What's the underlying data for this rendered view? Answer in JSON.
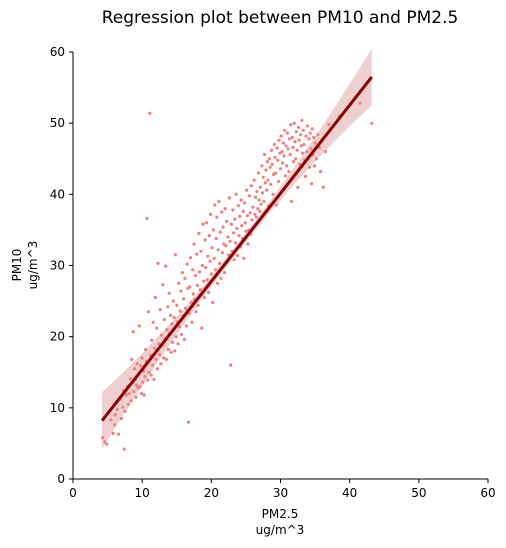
{
  "chart_data": {
    "type": "scatter",
    "title": "Regression plot between PM10 and PM2.5",
    "xlabel": [
      "PM2.5",
      "ug/m^3"
    ],
    "ylabel": [
      "PM10",
      "ug/m^3"
    ],
    "xlim": [
      0,
      60
    ],
    "ylim": [
      0,
      60
    ],
    "xticks": [
      0,
      10,
      20,
      30,
      40,
      50,
      60
    ],
    "yticks": [
      0,
      10,
      20,
      30,
      40,
      50,
      60
    ],
    "grid": false,
    "colors": {
      "points": "#f08080",
      "regression_line": "#8b0000",
      "confidence_band": "#e8bcbc"
    },
    "regression_line": {
      "x": [
        4.2,
        43.2
      ],
      "y": [
        8.2,
        56.5
      ]
    },
    "points": [
      [
        4.3,
        5.8
      ],
      [
        4.6,
        5.2
      ],
      [
        4.9,
        4.9
      ],
      [
        5.5,
        8.3
      ],
      [
        5.8,
        6.4
      ],
      [
        6.0,
        7.6
      ],
      [
        6.1,
        9.0
      ],
      [
        6.2,
        10.7
      ],
      [
        6.4,
        9.8
      ],
      [
        6.6,
        6.3
      ],
      [
        6.8,
        11.2
      ],
      [
        7.0,
        8.5
      ],
      [
        7.2,
        10.1
      ],
      [
        7.3,
        12.4
      ],
      [
        7.4,
        4.2
      ],
      [
        7.5,
        9.5
      ],
      [
        7.7,
        11.8
      ],
      [
        7.9,
        13.0
      ],
      [
        8.0,
        10.5
      ],
      [
        8.1,
        12.0
      ],
      [
        8.3,
        14.1
      ],
      [
        8.4,
        11.0
      ],
      [
        8.5,
        16.8
      ],
      [
        8.6,
        13.5
      ],
      [
        8.7,
        20.7
      ],
      [
        8.8,
        12.3
      ],
      [
        8.9,
        15.5
      ],
      [
        9.0,
        14.0
      ],
      [
        9.1,
        11.5
      ],
      [
        9.2,
        13.2
      ],
      [
        9.3,
        16.2
      ],
      [
        9.4,
        12.8
      ],
      [
        9.5,
        14.7
      ],
      [
        9.6,
        21.5
      ],
      [
        9.7,
        13.0
      ],
      [
        9.8,
        15.9
      ],
      [
        9.9,
        12.0
      ],
      [
        10.0,
        17.0
      ],
      [
        10.1,
        13.6
      ],
      [
        10.2,
        15.2
      ],
      [
        10.3,
        11.8
      ],
      [
        10.4,
        14.4
      ],
      [
        10.5,
        18.2
      ],
      [
        10.6,
        16.5
      ],
      [
        10.7,
        36.6
      ],
      [
        10.8,
        13.9
      ],
      [
        10.9,
        23.5
      ],
      [
        11.0,
        15.0
      ],
      [
        11.1,
        51.4
      ],
      [
        11.2,
        17.4
      ],
      [
        11.3,
        14.6
      ],
      [
        11.4,
        19.5
      ],
      [
        11.5,
        16.0
      ],
      [
        11.6,
        22.0
      ],
      [
        11.7,
        14.0
      ],
      [
        11.8,
        18.4
      ],
      [
        11.9,
        25.5
      ],
      [
        12.0,
        16.8
      ],
      [
        12.1,
        21.2
      ],
      [
        12.2,
        15.5
      ],
      [
        12.3,
        30.3
      ],
      [
        12.4,
        19.0
      ],
      [
        12.5,
        17.5
      ],
      [
        12.6,
        23.8
      ],
      [
        12.7,
        16.2
      ],
      [
        12.8,
        20.2
      ],
      [
        12.9,
        18.8
      ],
      [
        13.0,
        27.3
      ],
      [
        13.1,
        17.0
      ],
      [
        13.2,
        22.4
      ],
      [
        13.3,
        19.7
      ],
      [
        13.4,
        29.9
      ],
      [
        13.5,
        16.8
      ],
      [
        13.6,
        21.0
      ],
      [
        13.7,
        24.2
      ],
      [
        13.8,
        18.2
      ],
      [
        13.9,
        26.1
      ],
      [
        14.0,
        20.5
      ],
      [
        14.1,
        23.0
      ],
      [
        14.2,
        17.8
      ],
      [
        14.3,
        21.8
      ],
      [
        14.4,
        19.2
      ],
      [
        14.5,
        25.0
      ],
      [
        14.6,
        22.7
      ],
      [
        14.7,
        18.0
      ],
      [
        14.8,
        31.5
      ],
      [
        14.9,
        20.0
      ],
      [
        15.0,
        24.4
      ],
      [
        15.1,
        22.1
      ],
      [
        15.2,
        19.0
      ],
      [
        15.3,
        27.5
      ],
      [
        15.4,
        21.4
      ],
      [
        15.5,
        23.6
      ],
      [
        15.6,
        26.4
      ],
      [
        15.7,
        20.3
      ],
      [
        15.8,
        29.0
      ],
      [
        15.9,
        22.9
      ],
      [
        16.0,
        25.3
      ],
      [
        16.1,
        19.6
      ],
      [
        16.2,
        28.2
      ],
      [
        16.3,
        24.0
      ],
      [
        16.4,
        21.5
      ],
      [
        16.5,
        30.2
      ],
      [
        16.6,
        26.8
      ],
      [
        16.7,
        8.0
      ],
      [
        16.8,
        23.3
      ],
      [
        16.9,
        27.0
      ],
      [
        17.0,
        31.1
      ],
      [
        17.1,
        24.8
      ],
      [
        17.2,
        22.0
      ],
      [
        17.3,
        29.4
      ],
      [
        17.4,
        26.0
      ],
      [
        17.5,
        33.0
      ],
      [
        17.6,
        25.2
      ],
      [
        17.7,
        28.6
      ],
      [
        17.8,
        23.5
      ],
      [
        17.9,
        31.6
      ],
      [
        18.0,
        27.2
      ],
      [
        18.1,
        24.4
      ],
      [
        18.2,
        34.5
      ],
      [
        18.3,
        29.1
      ],
      [
        18.4,
        26.6
      ],
      [
        18.5,
        32.0
      ],
      [
        18.6,
        21.2
      ],
      [
        18.7,
        30.0
      ],
      [
        18.8,
        35.8
      ],
      [
        18.9,
        27.8
      ],
      [
        19.0,
        25.5
      ],
      [
        19.1,
        33.6
      ],
      [
        19.2,
        29.7
      ],
      [
        19.3,
        36.0
      ],
      [
        19.4,
        28.0
      ],
      [
        19.5,
        31.3
      ],
      [
        19.6,
        26.2
      ],
      [
        19.7,
        34.2
      ],
      [
        19.8,
        30.6
      ],
      [
        19.9,
        37.2
      ],
      [
        20.0,
        28.8
      ],
      [
        20.1,
        32.5
      ],
      [
        20.2,
        24.8
      ],
      [
        20.3,
        35.0
      ],
      [
        20.4,
        31.0
      ],
      [
        20.5,
        38.5
      ],
      [
        20.6,
        29.4
      ],
      [
        20.7,
        33.8
      ],
      [
        20.8,
        36.8
      ],
      [
        20.9,
        27.5
      ],
      [
        21.0,
        32.2
      ],
      [
        21.1,
        39.0
      ],
      [
        21.2,
        30.3
      ],
      [
        21.3,
        34.7
      ],
      [
        21.4,
        28.2
      ],
      [
        21.5,
        37.5
      ],
      [
        21.6,
        31.8
      ],
      [
        21.7,
        35.4
      ],
      [
        21.8,
        33.0
      ],
      [
        21.9,
        29.0
      ],
      [
        22.0,
        38.0
      ],
      [
        22.1,
        32.8
      ],
      [
        22.2,
        36.2
      ],
      [
        22.3,
        30.5
      ],
      [
        22.4,
        34.0
      ],
      [
        22.5,
        31.5
      ],
      [
        22.6,
        39.5
      ],
      [
        22.7,
        33.4
      ],
      [
        22.8,
        16.0
      ],
      [
        22.9,
        35.8
      ],
      [
        23.0,
        32.0
      ],
      [
        23.1,
        37.8
      ],
      [
        23.2,
        34.6
      ],
      [
        23.3,
        30.8
      ],
      [
        23.4,
        36.5
      ],
      [
        23.5,
        33.2
      ],
      [
        23.6,
        40.0
      ],
      [
        23.7,
        35.2
      ],
      [
        23.8,
        31.4
      ],
      [
        23.9,
        38.4
      ],
      [
        24.0,
        34.2
      ],
      [
        24.1,
        36.9
      ],
      [
        24.2,
        32.6
      ],
      [
        24.3,
        39.2
      ],
      [
        24.4,
        35.6
      ],
      [
        24.5,
        33.8
      ],
      [
        24.6,
        37.6
      ],
      [
        24.7,
        31.0
      ],
      [
        24.8,
        38.8
      ],
      [
        24.9,
        36.0
      ],
      [
        25.0,
        34.8
      ],
      [
        25.1,
        40.6
      ],
      [
        25.2,
        37.0
      ],
      [
        25.3,
        33.0
      ],
      [
        25.4,
        35.0
      ],
      [
        25.5,
        39.8
      ],
      [
        25.6,
        37.4
      ],
      [
        25.7,
        34.4
      ],
      [
        25.8,
        41.2
      ],
      [
        25.9,
        36.4
      ],
      [
        26.0,
        38.2
      ],
      [
        26.1,
        35.4
      ],
      [
        26.2,
        42.0
      ],
      [
        26.3,
        37.2
      ],
      [
        26.4,
        39.6
      ],
      [
        26.5,
        36.8
      ],
      [
        26.6,
        40.4
      ],
      [
        26.7,
        38.0
      ],
      [
        26.8,
        43.0
      ],
      [
        26.9,
        39.2
      ],
      [
        27.0,
        37.6
      ],
      [
        27.1,
        41.0
      ],
      [
        27.2,
        38.6
      ],
      [
        27.3,
        44.0
      ],
      [
        27.4,
        40.2
      ],
      [
        27.5,
        42.4
      ],
      [
        27.6,
        39.0
      ],
      [
        27.7,
        45.6
      ],
      [
        27.8,
        41.6
      ],
      [
        27.9,
        43.4
      ],
      [
        28.0,
        40.6
      ],
      [
        28.1,
        44.6
      ],
      [
        28.2,
        42.0
      ],
      [
        28.3,
        38.4
      ],
      [
        28.4,
        45.0
      ],
      [
        28.5,
        43.8
      ],
      [
        28.6,
        41.4
      ],
      [
        28.7,
        46.2
      ],
      [
        28.8,
        44.2
      ],
      [
        28.9,
        40.0
      ],
      [
        29.0,
        42.8
      ],
      [
        29.1,
        47.0
      ],
      [
        29.2,
        45.2
      ],
      [
        29.3,
        43.0
      ],
      [
        29.4,
        38.5
      ],
      [
        29.5,
        46.5
      ],
      [
        29.6,
        44.8
      ],
      [
        29.7,
        41.8
      ],
      [
        29.8,
        47.6
      ],
      [
        29.9,
        45.8
      ],
      [
        30.0,
        43.6
      ],
      [
        30.1,
        48.2
      ],
      [
        30.2,
        46.0
      ],
      [
        30.3,
        44.4
      ],
      [
        30.4,
        47.2
      ],
      [
        30.5,
        45.4
      ],
      [
        30.6,
        49.0
      ],
      [
        30.7,
        42.6
      ],
      [
        30.8,
        46.8
      ],
      [
        30.9,
        44.0
      ],
      [
        31.0,
        48.6
      ],
      [
        31.1,
        46.4
      ],
      [
        31.2,
        43.2
      ],
      [
        31.3,
        47.8
      ],
      [
        31.4,
        45.6
      ],
      [
        31.5,
        49.8
      ],
      [
        31.6,
        39.0
      ],
      [
        31.7,
        48.0
      ],
      [
        31.8,
        46.6
      ],
      [
        31.9,
        44.6
      ],
      [
        32.0,
        50.0
      ],
      [
        32.1,
        47.4
      ],
      [
        32.2,
        45.0
      ],
      [
        32.3,
        48.8
      ],
      [
        32.4,
        46.2
      ],
      [
        32.5,
        41.0
      ],
      [
        32.6,
        49.4
      ],
      [
        32.7,
        47.6
      ],
      [
        32.8,
        44.2
      ],
      [
        32.9,
        48.4
      ],
      [
        33.0,
        46.8
      ],
      [
        33.1,
        50.4
      ],
      [
        33.2,
        45.8
      ],
      [
        33.3,
        49.0
      ],
      [
        33.4,
        47.0
      ],
      [
        33.5,
        44.8
      ],
      [
        33.6,
        42.5
      ],
      [
        33.7,
        48.2
      ],
      [
        33.8,
        46.0
      ],
      [
        33.9,
        49.6
      ],
      [
        34.0,
        45.2
      ],
      [
        34.1,
        47.8
      ],
      [
        34.2,
        43.8
      ],
      [
        34.3,
        48.6
      ],
      [
        34.4,
        46.4
      ],
      [
        34.5,
        41.5
      ],
      [
        34.6,
        49.2
      ],
      [
        34.7,
        45.6
      ],
      [
        34.8,
        48.0
      ],
      [
        34.9,
        44.0
      ],
      [
        35.0,
        47.2
      ],
      [
        35.2,
        45.0
      ],
      [
        35.4,
        48.4
      ],
      [
        35.6,
        46.6
      ],
      [
        35.8,
        43.2
      ],
      [
        36.0,
        47.6
      ],
      [
        36.2,
        41.0
      ],
      [
        36.5,
        46.0
      ],
      [
        37.0,
        49.8
      ],
      [
        38.5,
        51.0
      ],
      [
        41.5,
        52.8
      ],
      [
        43.2,
        50.0
      ]
    ]
  }
}
